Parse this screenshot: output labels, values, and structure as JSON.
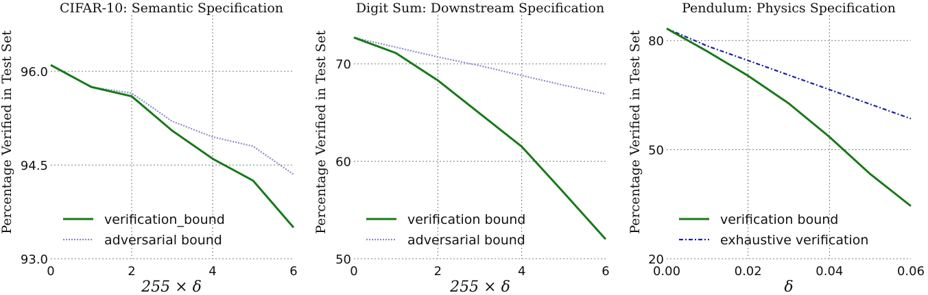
{
  "chart_data": [
    {
      "type": "line",
      "title": "CIFAR-10: Semantic Specification",
      "xlabel": "255 × δ",
      "ylabel": "Percentage Verified in Test Set",
      "xlim": [
        0,
        6
      ],
      "ylim": [
        93.0,
        96.9
      ],
      "xticks": [
        0,
        2,
        4,
        6
      ],
      "xtick_labels": [
        "0",
        "2",
        "4",
        "6"
      ],
      "yticks": [
        93.0,
        94.5,
        96.0
      ],
      "ytick_labels": [
        "93.0",
        "94.5",
        "96.0"
      ],
      "grid": true,
      "legend_position": "lower-left",
      "x": [
        0,
        1,
        2,
        3,
        4,
        5,
        6
      ],
      "series": [
        {
          "name": "verification_bound",
          "color": "#157a15",
          "style": "solid",
          "values": [
            96.1,
            95.75,
            95.6,
            95.05,
            94.6,
            94.25,
            93.5
          ]
        },
        {
          "name": "adversarial bound",
          "color": "#8888cc",
          "style": "dotted",
          "values": [
            96.1,
            95.75,
            95.65,
            95.2,
            94.95,
            94.8,
            94.35
          ]
        }
      ]
    },
    {
      "type": "line",
      "title": "Digit Sum: Downstream Specification",
      "xlabel": "255 × δ",
      "ylabel": "Percentage Verified in Test Set",
      "xlim": [
        0,
        6
      ],
      "ylim": [
        50,
        75
      ],
      "xticks": [
        0,
        2,
        4,
        6
      ],
      "xtick_labels": [
        "0",
        "2",
        "4",
        "6"
      ],
      "yticks": [
        50,
        60,
        70
      ],
      "ytick_labels": [
        "50",
        "60",
        "70"
      ],
      "grid": true,
      "legend_position": "lower-left",
      "x": [
        0,
        1,
        2,
        3,
        4,
        5,
        6
      ],
      "series": [
        {
          "name": "verification bound",
          "color": "#157a15",
          "style": "solid",
          "values": [
            72.7,
            71.1,
            68.3,
            64.9,
            61.5,
            56.8,
            52.0
          ]
        },
        {
          "name": "adversarial bound",
          "color": "#8888cc",
          "style": "dotted",
          "values": [
            72.7,
            71.7,
            70.7,
            69.8,
            68.8,
            67.8,
            66.9
          ]
        }
      ]
    },
    {
      "type": "line",
      "title": "Pendulum: Physics Specification",
      "xlabel": "δ",
      "ylabel": "Percentage Verified in Test Set",
      "xlim": [
        0.0,
        0.06
      ],
      "ylim": [
        20,
        87
      ],
      "xticks": [
        0.0,
        0.02,
        0.04,
        0.06
      ],
      "xtick_labels": [
        "0.00",
        "0.02",
        "0.04",
        "0.06"
      ],
      "yticks": [
        20,
        50,
        80
      ],
      "ytick_labels": [
        "20",
        "50",
        "80"
      ],
      "grid": true,
      "legend_position": "lower-left",
      "x": [
        0.0,
        0.01,
        0.02,
        0.03,
        0.04,
        0.05,
        0.06
      ],
      "series": [
        {
          "name": "verification bound",
          "color": "#157a15",
          "style": "solid",
          "values": [
            83.3,
            77.0,
            70.3,
            62.7,
            53.5,
            43.3,
            34.5
          ]
        },
        {
          "name": "exhaustive verification",
          "color": "#1c1ca8",
          "style": "dashdot",
          "values": [
            83.3,
            78.5,
            74.5,
            70.5,
            66.5,
            62.5,
            58.5
          ]
        }
      ]
    }
  ]
}
